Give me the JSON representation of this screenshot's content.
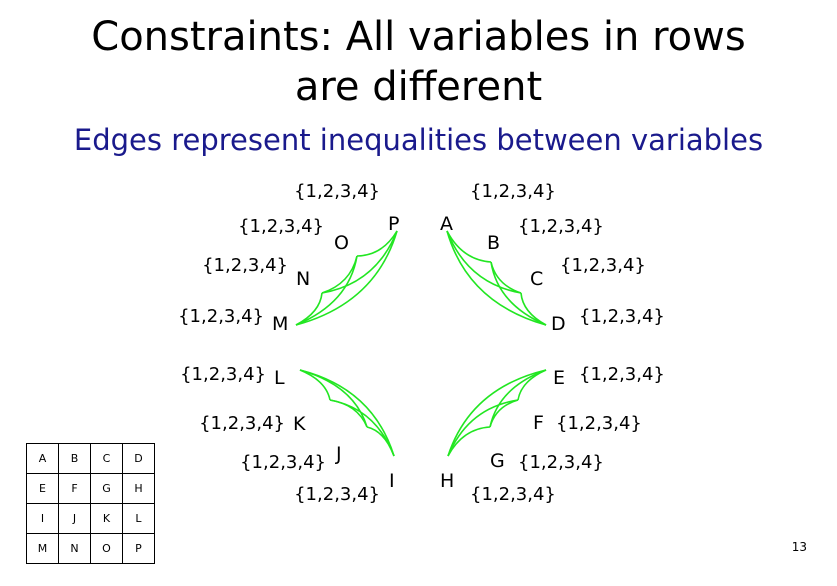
{
  "title_line1": "Constraints: All variables in rows",
  "title_line2": "are different",
  "subtitle": "Edges represent inequalities between variables",
  "domain_text": "{1,2,3,4}",
  "edge_color": "#22e622",
  "subtitle_color": "#1a1a8c",
  "rows": [
    {
      "variables": [
        "A",
        "B",
        "C",
        "D"
      ]
    },
    {
      "variables": [
        "E",
        "F",
        "G",
        "H"
      ]
    },
    {
      "variables": [
        "I",
        "J",
        "K",
        "L"
      ]
    },
    {
      "variables": [
        "M",
        "N",
        "O",
        "P"
      ]
    }
  ],
  "grid": [
    [
      "A",
      "B",
      "C",
      "D"
    ],
    [
      "E",
      "F",
      "G",
      "H"
    ],
    [
      "I",
      "J",
      "K",
      "L"
    ],
    [
      "M",
      "N",
      "O",
      "P"
    ]
  ],
  "page_number": "13"
}
